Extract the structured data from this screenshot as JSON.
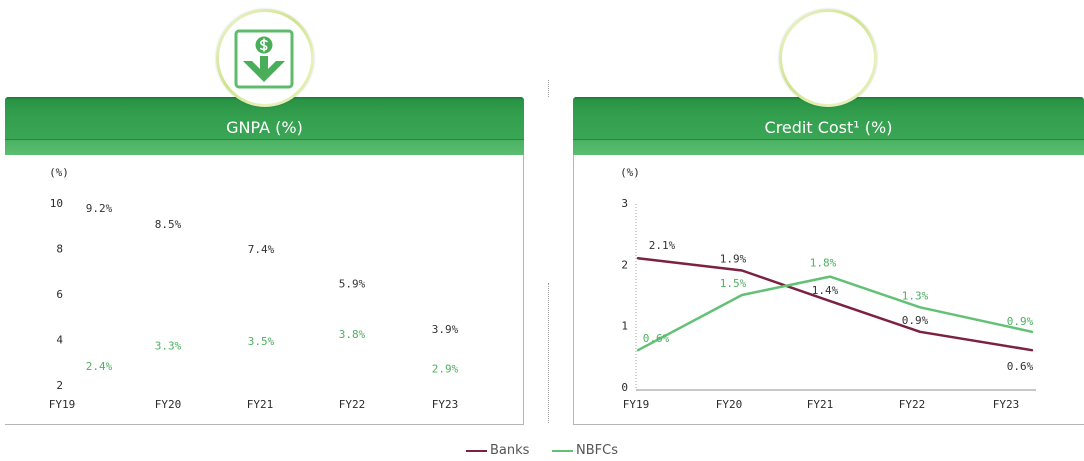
{
  "colors": {
    "banks": "#7b2141",
    "nbfcs": "#63c176",
    "banks_label_text": "#333333",
    "nbfcs_label_text": "#4fb062",
    "header": "#33a04f"
  },
  "icons": {
    "gnpa_badge": "dollar-down-arrow-icon"
  },
  "legend": {
    "placement": "bottom-center"
  },
  "chart_data": [
    {
      "type": "line",
      "title": "GNPA (%)",
      "ylabel": "(%)",
      "categories": [
        "FY19",
        "FY20",
        "FY21",
        "FY22",
        "FY23"
      ],
      "ylim": [
        2,
        10
      ],
      "yticks": [
        10,
        8,
        6,
        4,
        2
      ],
      "grid": false,
      "show_lines": false,
      "series": [
        {
          "name": "Banks",
          "values": [
            9.2,
            8.5,
            7.4,
            5.9,
            3.9
          ],
          "labels": [
            "9.2%",
            "8.5%",
            "7.4%",
            "5.9%",
            "3.9%"
          ]
        },
        {
          "name": "NBFCs",
          "values": [
            2.4,
            3.3,
            3.5,
            3.8,
            2.9
          ],
          "labels": [
            "2.4%",
            "3.3%",
            "3.5%",
            "3.8%",
            "2.9%"
          ]
        }
      ]
    },
    {
      "type": "line",
      "title": "Credit Cost¹ (%)",
      "ylabel": "(%)",
      "categories": [
        "FY19",
        "FY20",
        "FY21",
        "FY22",
        "FY23"
      ],
      "ylim": [
        0,
        3
      ],
      "yticks": [
        3,
        2,
        1,
        0
      ],
      "grid": false,
      "show_lines": true,
      "series": [
        {
          "name": "Banks",
          "values": [
            2.1,
            1.9,
            1.4,
            0.9,
            0.6
          ],
          "labels": [
            "2.1%",
            "1.9%",
            "1.4%",
            "0.9%",
            "0.6%"
          ]
        },
        {
          "name": "NBFCs",
          "values": [
            0.6,
            1.5,
            1.8,
            1.3,
            0.9
          ],
          "labels": [
            "0.6%",
            "1.5%",
            "1.8%",
            "1.3%",
            "0.9%"
          ]
        }
      ]
    }
  ]
}
